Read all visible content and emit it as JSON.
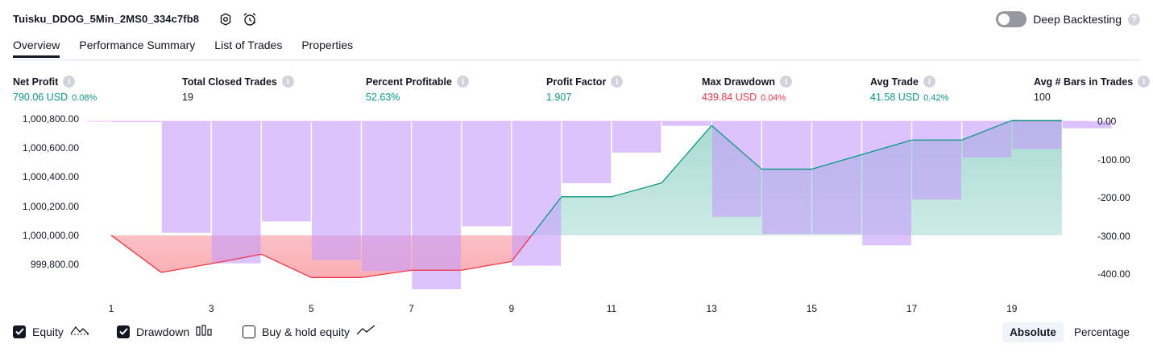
{
  "header": {
    "title": "Tuisku_DDOG_5Min_2MS0_334c7fb8",
    "deep_backtesting_label": "Deep Backtesting",
    "deep_backtesting_enabled": false,
    "help_glyph": "?"
  },
  "tabs": [
    {
      "label": "Overview",
      "active": true
    },
    {
      "label": "Performance Summary",
      "active": false
    },
    {
      "label": "List of Trades",
      "active": false
    },
    {
      "label": "Properties",
      "active": false
    }
  ],
  "metrics": [
    {
      "label": "Net Profit",
      "value": "790.06 USD",
      "pct": "0.08%",
      "color": "#089981"
    },
    {
      "label": "Total Closed Trades",
      "value": "19",
      "pct": "",
      "color": "#131722"
    },
    {
      "label": "Percent Profitable",
      "value": "52.63%",
      "pct": "",
      "color": "#089981"
    },
    {
      "label": "Profit Factor",
      "value": "1.907",
      "pct": "",
      "color": "#089981"
    },
    {
      "label": "Max Drawdown",
      "value": "439.84 USD",
      "pct": "0.04%",
      "color": "#f23645"
    },
    {
      "label": "Avg Trade",
      "value": "41.58 USD",
      "pct": "0.42%",
      "color": "#089981"
    },
    {
      "label": "Avg # Bars in Trades",
      "value": "100",
      "pct": "",
      "color": "#131722"
    }
  ],
  "chart_data": {
    "type": "line",
    "x_ticks": [
      "1",
      "3",
      "5",
      "7",
      "9",
      "11",
      "13",
      "15",
      "17",
      "19"
    ],
    "x": [
      1,
      2,
      3,
      4,
      5,
      6,
      7,
      8,
      9,
      10,
      11,
      12,
      13,
      14,
      15,
      16,
      17,
      18,
      19,
      20
    ],
    "left_axis": {
      "ticks": [
        "1,000,800.00",
        "1,000,600.00",
        "1,000,400.00",
        "1,000,200.00",
        "1,000,000.00",
        "999,800.00"
      ],
      "range": [
        999700,
        1000820
      ]
    },
    "right_axis": {
      "ticks": [
        "0.00",
        "-100.00",
        "-200.00",
        "-300.00",
        "-400.00"
      ],
      "range": [
        -460,
        0
      ]
    },
    "baseline": 1000000,
    "series": [
      {
        "name": "Equity",
        "values": [
          1000000,
          999745,
          999805,
          999870,
          999710,
          999710,
          999760,
          999760,
          999820,
          1000265,
          1000265,
          1000360,
          1000755,
          1000455,
          1000455,
          1000555,
          1000655,
          1000655,
          1000790,
          1000790
        ],
        "color_up": "#089981",
        "color_down": "#f23645"
      },
      {
        "name": "Drawdown",
        "values": [
          -2,
          -292,
          -372,
          -262,
          -363,
          -392,
          -440,
          -275,
          -378,
          -162,
          -82,
          -12,
          -250,
          -295,
          -295,
          -325,
          -205,
          -95,
          -72,
          -18
        ],
        "color": "#c59bfc"
      }
    ]
  },
  "legend": [
    {
      "label": "Equity",
      "checked": true
    },
    {
      "label": "Drawdown",
      "checked": true
    },
    {
      "label": "Buy & hold equity",
      "checked": false
    }
  ],
  "view_modes": [
    {
      "label": "Absolute",
      "selected": true
    },
    {
      "label": "Percentage",
      "selected": false
    }
  ]
}
